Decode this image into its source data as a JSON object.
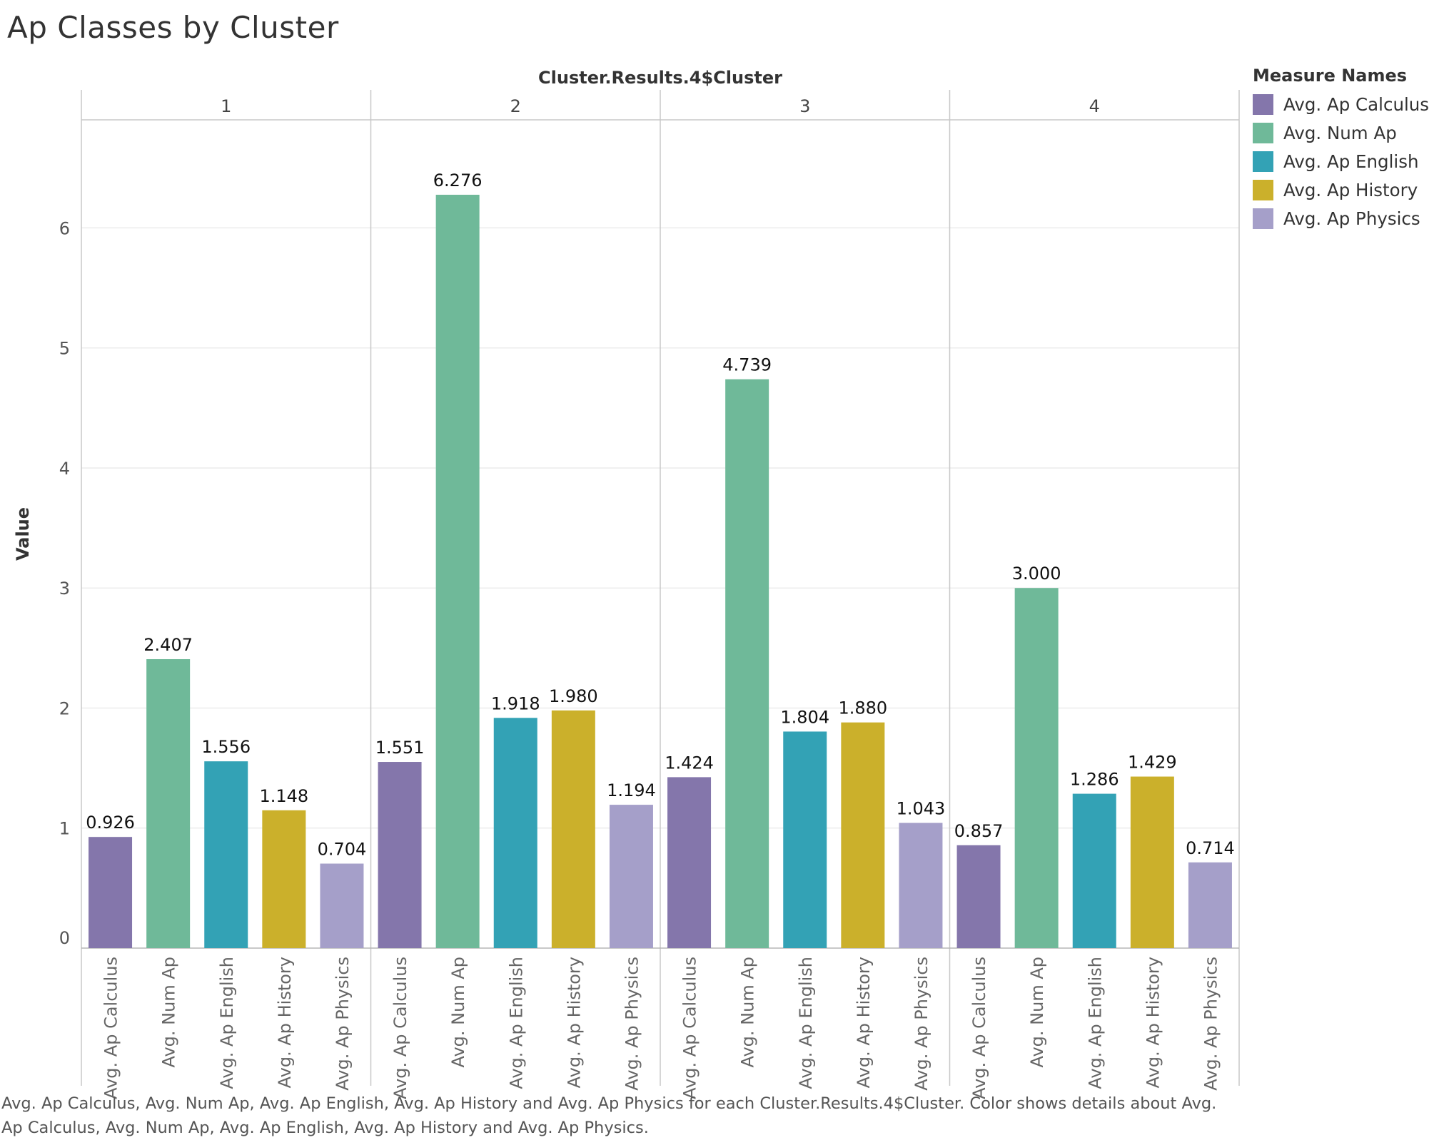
{
  "title": "Ap Classes by Cluster",
  "caption": "Avg. Ap Calculus, Avg. Num Ap, Avg. Ap English, Avg. Ap History and Avg. Ap Physics for each Cluster.Results.4$Cluster.  Color shows details about Avg. Ap Calculus, Avg. Num Ap, Avg. Ap English, Avg. Ap History and Avg. Ap Physics.",
  "legend": {
    "title": "Measure Names",
    "items": [
      {
        "label": "Avg. Ap Calculus",
        "color": "#8476ab"
      },
      {
        "label": "Avg. Num Ap",
        "color": "#6fb999"
      },
      {
        "label": "Avg. Ap English",
        "color": "#33a2b5"
      },
      {
        "label": "Avg. Ap History",
        "color": "#cbb02b"
      },
      {
        "label": "Avg. Ap Physics",
        "color": "#a59fc9"
      }
    ]
  },
  "chart_data": {
    "type": "bar",
    "column_header": "Cluster.Results.4$Cluster",
    "ylabel": "Value",
    "ylim": [
      0,
      6.9
    ],
    "yticks": [
      0,
      1,
      2,
      3,
      4,
      5,
      6
    ],
    "grid": true,
    "legend_position": "right",
    "categories": [
      "Avg. Ap Calculus",
      "Avg. Num Ap",
      "Avg. Ap English",
      "Avg. Ap History",
      "Avg. Ap Physics"
    ],
    "panels": [
      {
        "name": "1",
        "values": [
          0.926,
          2.407,
          1.556,
          1.148,
          0.704
        ],
        "labels": [
          "0.926",
          "2.407",
          "1.556",
          "1.148",
          "0.704"
        ]
      },
      {
        "name": "2",
        "values": [
          1.551,
          6.276,
          1.918,
          1.98,
          1.194
        ],
        "labels": [
          "1.551",
          "6.276",
          "1.918",
          "1.980",
          "1.194"
        ]
      },
      {
        "name": "3",
        "values": [
          1.424,
          4.739,
          1.804,
          1.88,
          1.043
        ],
        "labels": [
          "1.424",
          "4.739",
          "1.804",
          "1.880",
          "1.043"
        ]
      },
      {
        "name": "4",
        "values": [
          0.857,
          3.0,
          1.286,
          1.429,
          0.714
        ],
        "labels": [
          "0.857",
          "3.000",
          "1.286",
          "1.429",
          "0.714"
        ]
      }
    ]
  }
}
